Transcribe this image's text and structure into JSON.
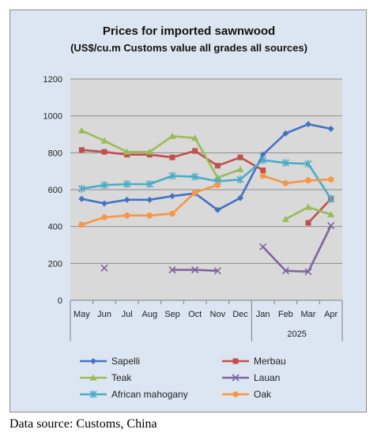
{
  "chart_data": {
    "type": "line",
    "title": "Prices for imported sawnwood",
    "subtitle": "(US$/cu.m Customs value all grades all sources)",
    "categories": [
      "May",
      "Jun",
      "Jul",
      "Aug",
      "Sep",
      "Oct",
      "Nov",
      "Dec",
      "Jan",
      "Feb",
      "Mar",
      "Apr"
    ],
    "year_label": "2025",
    "ylim": [
      0,
      1200
    ],
    "yticks": [
      0,
      200,
      400,
      600,
      800,
      1000,
      1200
    ],
    "grid": true,
    "legend_position": "bottom",
    "series": [
      {
        "name": "Sapelli",
        "color": "#4472c4",
        "marker": "diamond",
        "values": [
          550,
          525,
          545,
          545,
          565,
          580,
          490,
          555,
          790,
          905,
          955,
          930
        ]
      },
      {
        "name": "Merbau",
        "color": "#c0504d",
        "marker": "square",
        "values": [
          815,
          805,
          790,
          790,
          775,
          810,
          730,
          775,
          705,
          null,
          420,
          550
        ]
      },
      {
        "name": "Teak",
        "color": "#9bbb59",
        "marker": "triangle",
        "values": [
          920,
          865,
          805,
          805,
          890,
          880,
          665,
          710,
          null,
          440,
          505,
          465
        ]
      },
      {
        "name": "Lauan",
        "color": "#8064a2",
        "marker": "x",
        "values": [
          null,
          175,
          null,
          null,
          165,
          165,
          160,
          null,
          290,
          160,
          155,
          405
        ]
      },
      {
        "name": "African mahogany",
        "color": "#4bacc6",
        "marker": "star",
        "values": [
          605,
          625,
          630,
          630,
          675,
          670,
          645,
          655,
          760,
          745,
          740,
          550
        ]
      },
      {
        "name": "Oak",
        "color": "#f79646",
        "marker": "circle",
        "values": [
          410,
          450,
          460,
          460,
          470,
          585,
          625,
          null,
          675,
          635,
          650,
          655
        ]
      }
    ]
  },
  "footer": {
    "source": "Data source: Customs, China"
  }
}
